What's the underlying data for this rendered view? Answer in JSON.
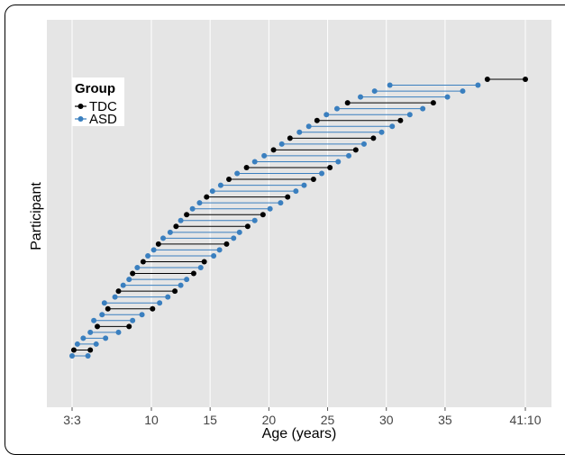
{
  "chart_data": {
    "type": "scatter",
    "subtype": "age-span dumbbell (one row per participant)",
    "xlabel": "Age (years)",
    "ylabel": "Participant",
    "xlim": [
      3.25,
      41.833
    ],
    "x_ticks": [
      {
        "value": 3.25,
        "label": "3:3"
      },
      {
        "value": 10,
        "label": "10"
      },
      {
        "value": 15,
        "label": "15"
      },
      {
        "value": 20,
        "label": "20"
      },
      {
        "value": 25,
        "label": "25"
      },
      {
        "value": 30,
        "label": "30"
      },
      {
        "value": 35,
        "label": "35"
      },
      {
        "value": 41.833,
        "label": "41:10"
      }
    ],
    "grid": true,
    "legend": {
      "title": "Group",
      "position": "top-left",
      "entries": [
        "TDC",
        "ASD"
      ]
    },
    "colors": {
      "TDC": "#000000",
      "ASD": "#3a7fbf",
      "panel": "#e5e5e5",
      "grid": "#ffffff"
    },
    "series": [
      {
        "name": "TDC",
        "label": "TDC"
      },
      {
        "name": "ASD",
        "label": "ASD"
      }
    ],
    "rows": [
      {
        "group": "ASD",
        "ages": [
          3.25,
          4.6
        ]
      },
      {
        "group": "TDC",
        "ages": [
          3.4,
          4.8
        ]
      },
      {
        "group": "ASD",
        "ages": [
          3.7,
          5.3
        ]
      },
      {
        "group": "ASD",
        "ages": [
          4.2,
          6.1
        ]
      },
      {
        "group": "ASD",
        "ages": [
          4.8,
          7.2
        ]
      },
      {
        "group": "TDC",
        "ages": [
          5.4,
          8.1
        ]
      },
      {
        "group": "ASD",
        "ages": [
          5.1,
          8.4
        ]
      },
      {
        "group": "ASD",
        "ages": [
          5.8,
          9.2
        ]
      },
      {
        "group": "TDC",
        "ages": [
          6.3,
          10.1
        ]
      },
      {
        "group": "ASD",
        "ages": [
          6.0,
          10.7
        ]
      },
      {
        "group": "ASD",
        "ages": [
          6.9,
          11.4
        ]
      },
      {
        "group": "TDC",
        "ages": [
          7.2,
          12.0
        ]
      },
      {
        "group": "ASD",
        "ages": [
          7.6,
          12.5
        ]
      },
      {
        "group": "ASD",
        "ages": [
          8.1,
          13.0
        ]
      },
      {
        "group": "TDC",
        "ages": [
          8.4,
          13.6
        ]
      },
      {
        "group": "ASD",
        "ages": [
          8.8,
          14.2
        ]
      },
      {
        "group": "TDC",
        "ages": [
          9.3,
          14.5
        ]
      },
      {
        "group": "ASD",
        "ages": [
          9.7,
          15.3
        ]
      },
      {
        "group": "ASD",
        "ages": [
          10.2,
          15.8
        ]
      },
      {
        "group": "TDC",
        "ages": [
          10.6,
          16.4
        ]
      },
      {
        "group": "ASD",
        "ages": [
          11.0,
          17.0
        ]
      },
      {
        "group": "ASD",
        "ages": [
          11.6,
          17.5
        ]
      },
      {
        "group": "TDC",
        "ages": [
          12.1,
          18.2
        ]
      },
      {
        "group": "ASD",
        "ages": [
          12.5,
          18.8
        ]
      },
      {
        "group": "TDC",
        "ages": [
          13.0,
          19.5
        ]
      },
      {
        "group": "ASD",
        "ages": [
          13.5,
          20.1
        ]
      },
      {
        "group": "ASD",
        "ages": [
          14.1,
          21.0
        ]
      },
      {
        "group": "TDC",
        "ages": [
          14.7,
          21.6
        ]
      },
      {
        "group": "ASD",
        "ages": [
          15.2,
          22.3
        ]
      },
      {
        "group": "ASD",
        "ages": [
          15.9,
          23.0
        ]
      },
      {
        "group": "TDC",
        "ages": [
          16.6,
          23.8
        ]
      },
      {
        "group": "ASD",
        "ages": [
          17.3,
          24.5
        ]
      },
      {
        "group": "TDC",
        "ages": [
          18.1,
          25.2
        ]
      },
      {
        "group": "ASD",
        "ages": [
          18.8,
          25.9
        ]
      },
      {
        "group": "ASD",
        "ages": [
          19.6,
          26.8
        ]
      },
      {
        "group": "TDC",
        "ages": [
          20.4,
          27.4
        ]
      },
      {
        "group": "ASD",
        "ages": [
          21.1,
          28.1
        ]
      },
      {
        "group": "TDC",
        "ages": [
          21.8,
          28.9
        ]
      },
      {
        "group": "ASD",
        "ages": [
          22.6,
          29.6
        ]
      },
      {
        "group": "ASD",
        "ages": [
          23.4,
          30.5
        ]
      },
      {
        "group": "TDC",
        "ages": [
          24.1,
          31.2
        ]
      },
      {
        "group": "ASD",
        "ages": [
          24.9,
          32.0
        ]
      },
      {
        "group": "ASD",
        "ages": [
          25.8,
          33.1
        ]
      },
      {
        "group": "TDC",
        "ages": [
          26.7,
          34.0
        ]
      },
      {
        "group": "ASD",
        "ages": [
          27.8,
          35.2
        ]
      },
      {
        "group": "ASD",
        "ages": [
          29.0,
          36.5
        ]
      },
      {
        "group": "ASD",
        "ages": [
          30.3,
          37.8
        ]
      },
      {
        "group": "TDC",
        "ages": [
          38.6,
          41.833
        ]
      }
    ]
  }
}
